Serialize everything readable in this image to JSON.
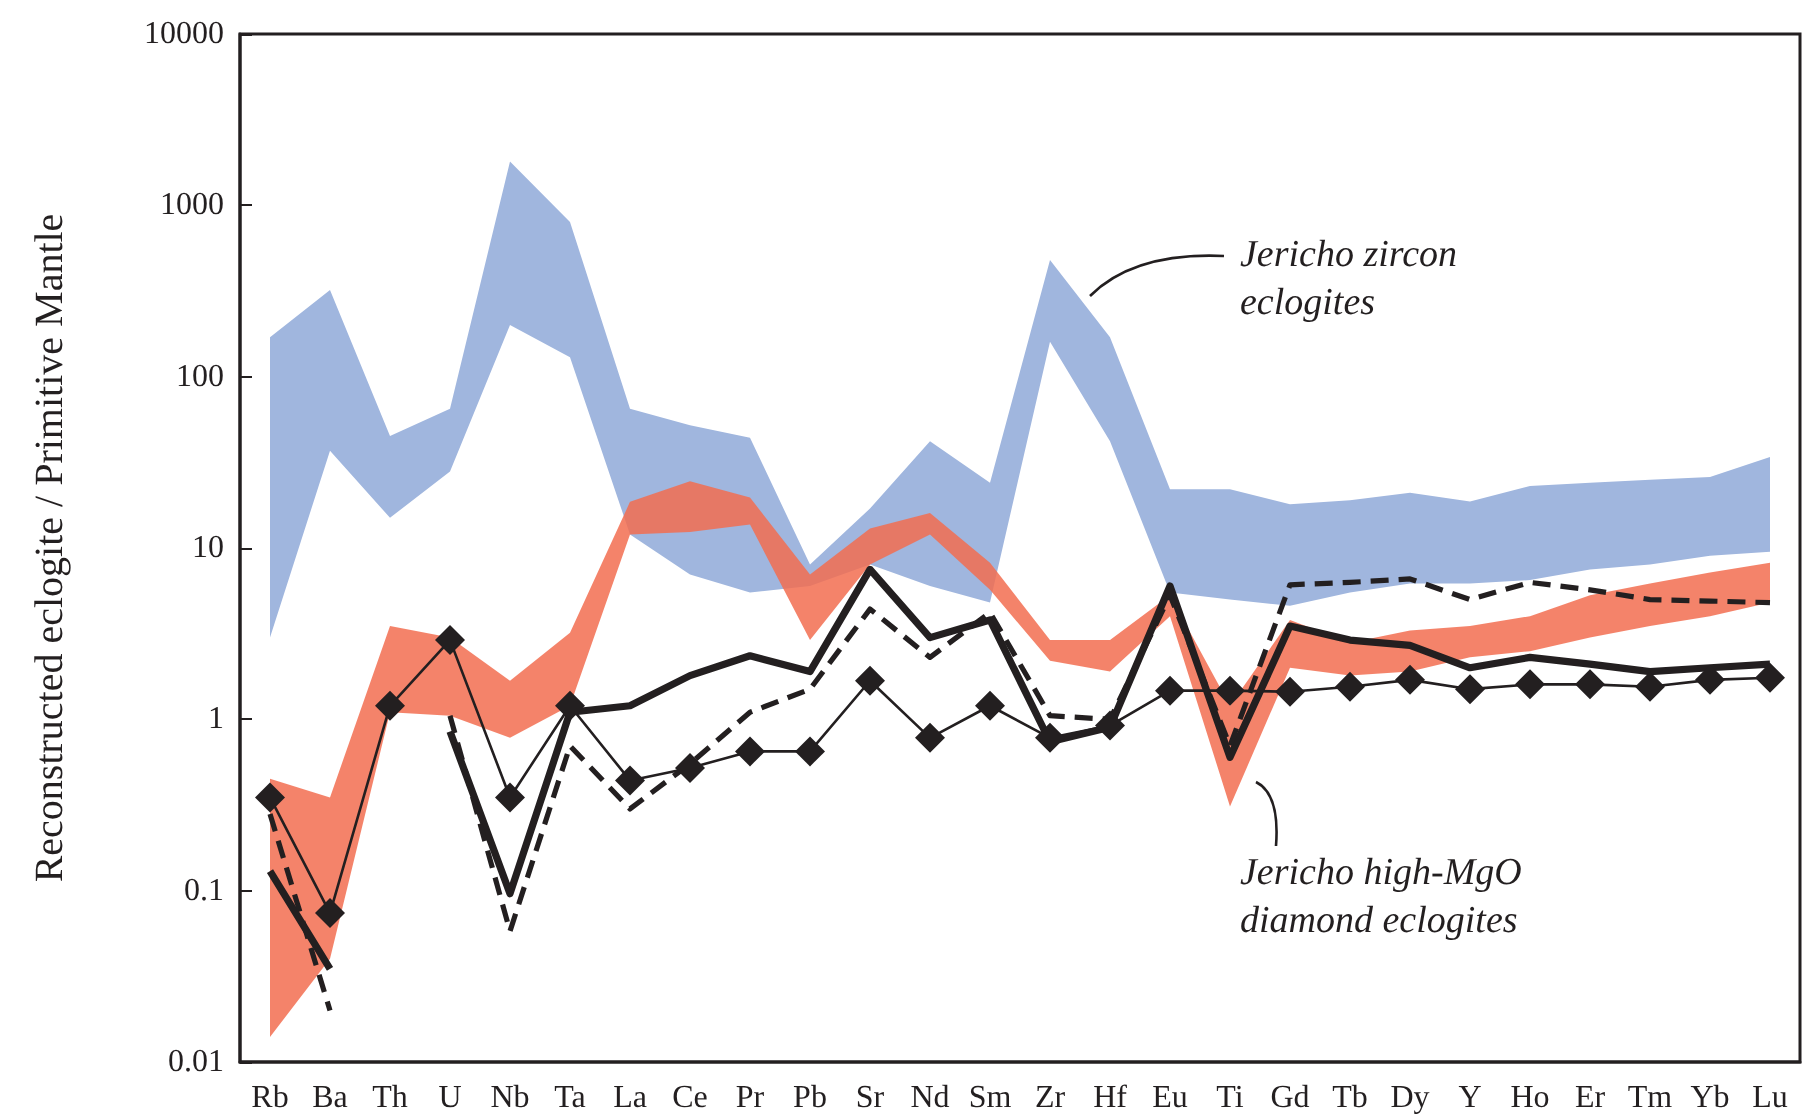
{
  "chart_data": {
    "type": "line",
    "ylabel": "Reconstructed eclogite / Primitive Mantle",
    "categories": [
      "Rb",
      "Ba",
      "Th",
      "U",
      "Nb",
      "Ta",
      "La",
      "Ce",
      "Pr",
      "Pb",
      "Sr",
      "Nd",
      "Sm",
      "Zr",
      "Hf",
      "Eu",
      "Ti",
      "Gd",
      "Tb",
      "Dy",
      "Y",
      "Ho",
      "Er",
      "Tm",
      "Yb",
      "Lu"
    ],
    "series": [
      {
        "type": "area",
        "color": "#a0b6de",
        "lower": [
          3,
          37,
          15,
          28,
          200,
          130,
          12,
          7,
          5.5,
          6,
          8,
          6,
          4.8,
          160,
          42,
          5.5,
          5,
          4.6,
          5.5,
          6.2,
          6.2,
          6.5,
          7.5,
          8,
          9,
          9.5
        ],
        "upper": [
          170,
          320,
          45,
          65,
          1800,
          800,
          65,
          52,
          44,
          8,
          17,
          42,
          24,
          480,
          170,
          22,
          22,
          18,
          19,
          21,
          18.7,
          23,
          24,
          25,
          26,
          34
        ],
        "values": [
          null,
          null,
          null,
          null,
          null,
          null,
          null,
          null,
          null,
          null,
          null,
          null,
          null,
          null,
          null,
          null,
          null,
          null,
          null,
          null,
          null,
          null,
          null,
          null,
          null,
          null
        ]
      },
      {
        "type": "area",
        "color": "#f26d50",
        "lower": [
          0.014,
          0.04,
          1.1,
          1.05,
          0.78,
          1.2,
          12,
          12.4,
          13.7,
          2.9,
          8,
          12,
          5.7,
          2.2,
          1.9,
          4,
          0.31,
          2,
          1.8,
          1.9,
          2.3,
          2.5,
          3,
          3.5,
          4,
          4.8
        ],
        "upper": [
          0.45,
          0.35,
          3.5,
          3,
          1.68,
          3.2,
          18.6,
          24.5,
          19.7,
          7,
          13,
          16,
          8.2,
          2.9,
          2.9,
          5.3,
          1.2,
          3.8,
          2.8,
          3.3,
          3.5,
          4,
          5.3,
          6.2,
          7.2,
          8.2
        ],
        "values": [
          null,
          null,
          null,
          null,
          null,
          null,
          null,
          null,
          null,
          null,
          null,
          null,
          null,
          null,
          null,
          null,
          null,
          null,
          null,
          null,
          null,
          null,
          null,
          null,
          null,
          null
        ]
      },
      {
        "type": "line",
        "color": "#231f20",
        "marker": "diamond",
        "line_style": "solid",
        "values": [
          0.35,
          0.074,
          1.2,
          2.9,
          0.35,
          1.2,
          0.44,
          0.52,
          0.65,
          0.65,
          1.68,
          0.78,
          1.2,
          0.78,
          0.92,
          1.47,
          1.47,
          1.45,
          1.55,
          1.7,
          1.5,
          1.6,
          1.6,
          1.55,
          1.7,
          1.75
        ]
      },
      {
        "type": "line",
        "color": "#231f20",
        "marker": "none",
        "line_style": "solid",
        "values": [
          0.13,
          0.035,
          null,
          0.85,
          0.096,
          1.1,
          1.2,
          1.8,
          2.35,
          1.9,
          7.5,
          3,
          3.8,
          0.74,
          0.9,
          6,
          0.6,
          3.5,
          2.9,
          2.7,
          2,
          2.3,
          2.1,
          1.9,
          2,
          2.1
        ]
      },
      {
        "type": "line",
        "color": "#231f20",
        "marker": "none",
        "line_style": "dashed",
        "values": [
          0.28,
          0.02,
          null,
          1.05,
          0.058,
          0.7,
          0.3,
          0.55,
          1.1,
          1.5,
          4.4,
          2.3,
          4.2,
          1.05,
          1,
          5.3,
          0.7,
          6.1,
          6.3,
          6.6,
          5,
          6.3,
          5.7,
          5,
          4.9,
          4.8
        ]
      }
    ],
    "ylim": [
      0.01,
      10000
    ],
    "yticks": [
      0.01,
      0.1,
      1,
      10,
      100,
      1000,
      10000
    ],
    "log": "y",
    "grid": false,
    "annotations": [
      "Jericho zircon eclogites",
      "Jericho high-MgO diamond eclogites"
    ]
  }
}
